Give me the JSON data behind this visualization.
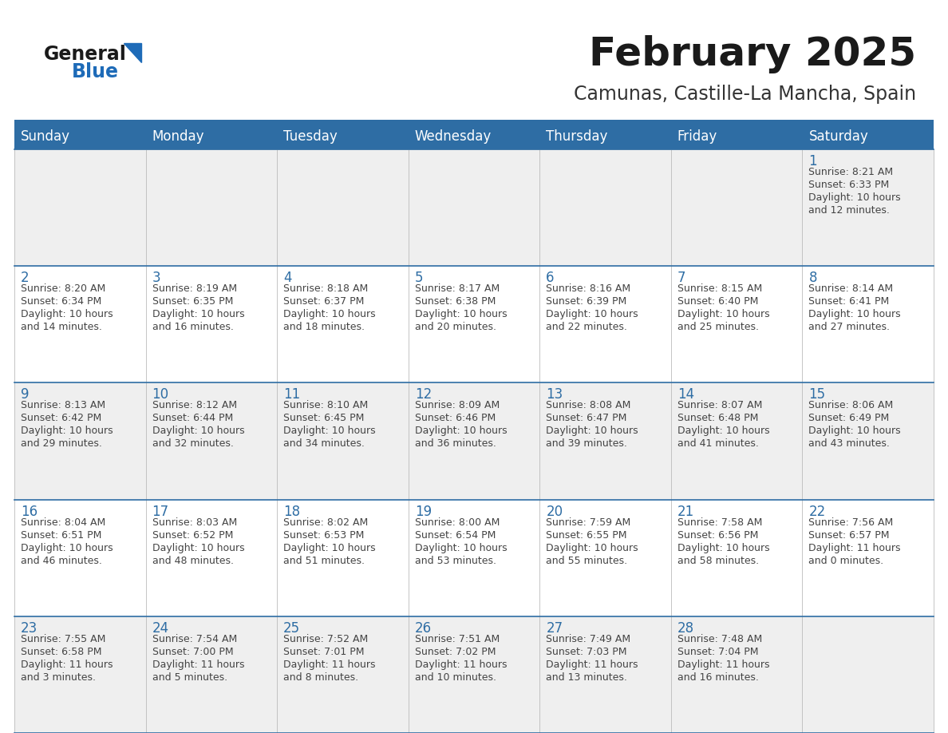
{
  "title": "February 2025",
  "subtitle": "Camunas, Castille-La Mancha, Spain",
  "days_of_week": [
    "Sunday",
    "Monday",
    "Tuesday",
    "Wednesday",
    "Thursday",
    "Friday",
    "Saturday"
  ],
  "header_bg": "#2E6DA4",
  "header_text": "#FFFFFF",
  "cell_bg_light": "#EFEFEF",
  "cell_bg_white": "#FFFFFF",
  "cell_border": "#AAAAAA",
  "day_number_color": "#2E6DA4",
  "info_text_color": "#444444",
  "title_color": "#1a1a1a",
  "subtitle_color": "#333333",
  "logo_general_color": "#1a1a1a",
  "logo_blue_color": "#1E6BB8",
  "calendar_data": [
    {
      "day": 1,
      "col": 6,
      "row": 0,
      "sunrise": "8:21 AM",
      "sunset": "6:33 PM",
      "daylight_h": "10 hours",
      "daylight_m": "and 12 minutes."
    },
    {
      "day": 2,
      "col": 0,
      "row": 1,
      "sunrise": "8:20 AM",
      "sunset": "6:34 PM",
      "daylight_h": "10 hours",
      "daylight_m": "and 14 minutes."
    },
    {
      "day": 3,
      "col": 1,
      "row": 1,
      "sunrise": "8:19 AM",
      "sunset": "6:35 PM",
      "daylight_h": "10 hours",
      "daylight_m": "and 16 minutes."
    },
    {
      "day": 4,
      "col": 2,
      "row": 1,
      "sunrise": "8:18 AM",
      "sunset": "6:37 PM",
      "daylight_h": "10 hours",
      "daylight_m": "and 18 minutes."
    },
    {
      "day": 5,
      "col": 3,
      "row": 1,
      "sunrise": "8:17 AM",
      "sunset": "6:38 PM",
      "daylight_h": "10 hours",
      "daylight_m": "and 20 minutes."
    },
    {
      "day": 6,
      "col": 4,
      "row": 1,
      "sunrise": "8:16 AM",
      "sunset": "6:39 PM",
      "daylight_h": "10 hours",
      "daylight_m": "and 22 minutes."
    },
    {
      "day": 7,
      "col": 5,
      "row": 1,
      "sunrise": "8:15 AM",
      "sunset": "6:40 PM",
      "daylight_h": "10 hours",
      "daylight_m": "and 25 minutes."
    },
    {
      "day": 8,
      "col": 6,
      "row": 1,
      "sunrise": "8:14 AM",
      "sunset": "6:41 PM",
      "daylight_h": "10 hours",
      "daylight_m": "and 27 minutes."
    },
    {
      "day": 9,
      "col": 0,
      "row": 2,
      "sunrise": "8:13 AM",
      "sunset": "6:42 PM",
      "daylight_h": "10 hours",
      "daylight_m": "and 29 minutes."
    },
    {
      "day": 10,
      "col": 1,
      "row": 2,
      "sunrise": "8:12 AM",
      "sunset": "6:44 PM",
      "daylight_h": "10 hours",
      "daylight_m": "and 32 minutes."
    },
    {
      "day": 11,
      "col": 2,
      "row": 2,
      "sunrise": "8:10 AM",
      "sunset": "6:45 PM",
      "daylight_h": "10 hours",
      "daylight_m": "and 34 minutes."
    },
    {
      "day": 12,
      "col": 3,
      "row": 2,
      "sunrise": "8:09 AM",
      "sunset": "6:46 PM",
      "daylight_h": "10 hours",
      "daylight_m": "and 36 minutes."
    },
    {
      "day": 13,
      "col": 4,
      "row": 2,
      "sunrise": "8:08 AM",
      "sunset": "6:47 PM",
      "daylight_h": "10 hours",
      "daylight_m": "and 39 minutes."
    },
    {
      "day": 14,
      "col": 5,
      "row": 2,
      "sunrise": "8:07 AM",
      "sunset": "6:48 PM",
      "daylight_h": "10 hours",
      "daylight_m": "and 41 minutes."
    },
    {
      "day": 15,
      "col": 6,
      "row": 2,
      "sunrise": "8:06 AM",
      "sunset": "6:49 PM",
      "daylight_h": "10 hours",
      "daylight_m": "and 43 minutes."
    },
    {
      "day": 16,
      "col": 0,
      "row": 3,
      "sunrise": "8:04 AM",
      "sunset": "6:51 PM",
      "daylight_h": "10 hours",
      "daylight_m": "and 46 minutes."
    },
    {
      "day": 17,
      "col": 1,
      "row": 3,
      "sunrise": "8:03 AM",
      "sunset": "6:52 PM",
      "daylight_h": "10 hours",
      "daylight_m": "and 48 minutes."
    },
    {
      "day": 18,
      "col": 2,
      "row": 3,
      "sunrise": "8:02 AM",
      "sunset": "6:53 PM",
      "daylight_h": "10 hours",
      "daylight_m": "and 51 minutes."
    },
    {
      "day": 19,
      "col": 3,
      "row": 3,
      "sunrise": "8:00 AM",
      "sunset": "6:54 PM",
      "daylight_h": "10 hours",
      "daylight_m": "and 53 minutes."
    },
    {
      "day": 20,
      "col": 4,
      "row": 3,
      "sunrise": "7:59 AM",
      "sunset": "6:55 PM",
      "daylight_h": "10 hours",
      "daylight_m": "and 55 minutes."
    },
    {
      "day": 21,
      "col": 5,
      "row": 3,
      "sunrise": "7:58 AM",
      "sunset": "6:56 PM",
      "daylight_h": "10 hours",
      "daylight_m": "and 58 minutes."
    },
    {
      "day": 22,
      "col": 6,
      "row": 3,
      "sunrise": "7:56 AM",
      "sunset": "6:57 PM",
      "daylight_h": "11 hours",
      "daylight_m": "and 0 minutes."
    },
    {
      "day": 23,
      "col": 0,
      "row": 4,
      "sunrise": "7:55 AM",
      "sunset": "6:58 PM",
      "daylight_h": "11 hours",
      "daylight_m": "and 3 minutes."
    },
    {
      "day": 24,
      "col": 1,
      "row": 4,
      "sunrise": "7:54 AM",
      "sunset": "7:00 PM",
      "daylight_h": "11 hours",
      "daylight_m": "and 5 minutes."
    },
    {
      "day": 25,
      "col": 2,
      "row": 4,
      "sunrise": "7:52 AM",
      "sunset": "7:01 PM",
      "daylight_h": "11 hours",
      "daylight_m": "and 8 minutes."
    },
    {
      "day": 26,
      "col": 3,
      "row": 4,
      "sunrise": "7:51 AM",
      "sunset": "7:02 PM",
      "daylight_h": "11 hours",
      "daylight_m": "and 10 minutes."
    },
    {
      "day": 27,
      "col": 4,
      "row": 4,
      "sunrise": "7:49 AM",
      "sunset": "7:03 PM",
      "daylight_h": "11 hours",
      "daylight_m": "and 13 minutes."
    },
    {
      "day": 28,
      "col": 5,
      "row": 4,
      "sunrise": "7:48 AM",
      "sunset": "7:04 PM",
      "daylight_h": "11 hours",
      "daylight_m": "and 16 minutes."
    }
  ]
}
